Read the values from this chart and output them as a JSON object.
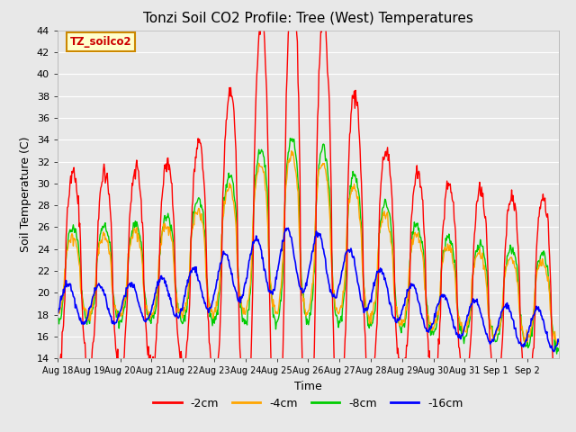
{
  "title": "Tonzi Soil CO2 Profile: Tree (West) Temperatures",
  "xlabel": "Time",
  "ylabel": "Soil Temperature (C)",
  "ylim": [
    14,
    44
  ],
  "yticks": [
    14,
    16,
    18,
    20,
    22,
    24,
    26,
    28,
    30,
    32,
    34,
    36,
    38,
    40,
    42,
    44
  ],
  "bg_color": "#e8e8e8",
  "series_labels": [
    "-2cm",
    "-4cm",
    "-8cm",
    "-16cm"
  ],
  "series_colors": [
    "#ff0000",
    "#ffa500",
    "#00cc00",
    "#0000ff"
  ],
  "x_tick_labels": [
    "Aug 18",
    "Aug 19",
    "Aug 20",
    "Aug 21",
    "Aug 22",
    "Aug 23",
    "Aug 24",
    "Aug 25",
    "Aug 26",
    "Aug 27",
    "Aug 28",
    "Aug 29",
    "Aug 30",
    "Aug 31",
    "Sep 1",
    "Sep 2"
  ],
  "annotation_text": "TZ_soilco2",
  "annotation_color": "#cc0000",
  "annotation_bg": "#ffffcc",
  "annotation_border": "#cc8800",
  "title_fontsize": 11,
  "axis_label_fontsize": 9,
  "tick_fontsize": 8,
  "legend_fontsize": 9
}
